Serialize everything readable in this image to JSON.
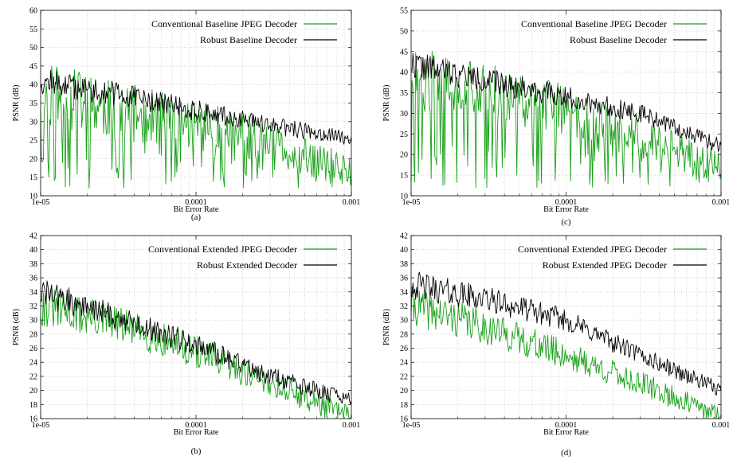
{
  "chart_data": [
    {
      "id": "a",
      "type": "line",
      "caption": "(a)",
      "xlabel": "Bit Error Rate",
      "ylabel": "PSNR (dB)",
      "xscale": "log",
      "xlim": [
        1e-05,
        0.001
      ],
      "ylim": [
        10,
        60
      ],
      "yticks": [
        10,
        15,
        20,
        25,
        30,
        35,
        40,
        45,
        50,
        55,
        60
      ],
      "xticks": [
        "1e-05",
        "0.0001",
        "0.001"
      ],
      "legend_position": "top-right",
      "series": [
        {
          "name": "Conventional Baseline JPEG Decoder",
          "color": "#16a016",
          "trend": [
            [
              1e-05,
              38
            ],
            [
              3e-05,
              33
            ],
            [
              0.0001,
              29
            ],
            [
              0.0003,
              24
            ],
            [
              0.001,
              16
            ]
          ],
          "noise": 8,
          "drop_prob": 0.22,
          "drop_floor": 12,
          "seed": 11
        },
        {
          "name": "Robust Baseline Decoder",
          "color": "#000000",
          "trend": [
            [
              1e-05,
              41
            ],
            [
              3e-05,
              37.5
            ],
            [
              0.0001,
              33
            ],
            [
              0.0003,
              29
            ],
            [
              0.001,
              25.5
            ]
          ],
          "noise": 3.2,
          "drop_prob": 0,
          "drop_floor": 12,
          "seed": 12
        }
      ]
    },
    {
      "id": "c",
      "type": "line",
      "caption": "(c)",
      "xlabel": "Bit Error Rate",
      "ylabel": "PSNR (dB)",
      "xscale": "log",
      "xlim": [
        1e-05,
        0.001
      ],
      "ylim": [
        10,
        55
      ],
      "yticks": [
        10,
        15,
        20,
        25,
        30,
        35,
        40,
        45,
        50,
        55
      ],
      "xticks": [
        "1e-05",
        "0.0001",
        "0.001"
      ],
      "legend_position": "top-right",
      "series": [
        {
          "name": "Conventional Baseline JPEG Decoder",
          "color": "#16a016",
          "trend": [
            [
              1e-05,
              39
            ],
            [
              3e-05,
              35
            ],
            [
              0.0001,
              31
            ],
            [
              0.0003,
              25
            ],
            [
              0.001,
              16
            ]
          ],
          "noise": 7,
          "drop_prob": 0.2,
          "drop_floor": 12,
          "seed": 21
        },
        {
          "name": "Robust Baseline Decoder",
          "color": "#000000",
          "trend": [
            [
              1e-05,
              42
            ],
            [
              3e-05,
              38
            ],
            [
              0.0001,
              34
            ],
            [
              0.0003,
              30
            ],
            [
              0.001,
              22
            ]
          ],
          "noise": 3,
          "drop_prob": 0,
          "drop_floor": 12,
          "seed": 22
        }
      ]
    },
    {
      "id": "b",
      "type": "line",
      "caption": "(b)",
      "xlabel": "Bit Error Rate",
      "ylabel": "PSNR (dB)",
      "xscale": "log",
      "xlim": [
        1e-05,
        0.001
      ],
      "ylim": [
        16,
        42
      ],
      "yticks": [
        16,
        18,
        20,
        22,
        24,
        26,
        28,
        30,
        32,
        34,
        36,
        38,
        40,
        42
      ],
      "xticks": [
        "1e-05",
        "0.0001",
        "0.001"
      ],
      "legend_position": "top-right",
      "series": [
        {
          "name": "Conventional Extended JPEG Decoder",
          "color": "#16a016",
          "trend": [
            [
              1e-05,
              32
            ],
            [
              3e-05,
              29.5
            ],
            [
              0.0001,
              25.5
            ],
            [
              0.0003,
              21
            ],
            [
              0.001,
              16.2
            ]
          ],
          "noise": 2.6,
          "drop_prob": 0,
          "drop_floor": 16,
          "seed": 31
        },
        {
          "name": "Robust Extended Decoder",
          "color": "#000000",
          "trend": [
            [
              1e-05,
              34
            ],
            [
              3e-05,
              30.5
            ],
            [
              0.0001,
              26.5
            ],
            [
              0.0003,
              22
            ],
            [
              0.001,
              18.5
            ]
          ],
          "noise": 1.8,
          "drop_prob": 0,
          "drop_floor": 16,
          "seed": 32
        }
      ]
    },
    {
      "id": "d",
      "type": "line",
      "caption": "(d)",
      "xlabel": "Bit Error Rate",
      "ylabel": "PSNR (dB)",
      "xscale": "log",
      "xlim": [
        1e-05,
        0.001
      ],
      "ylim": [
        16,
        42
      ],
      "yticks": [
        16,
        18,
        20,
        22,
        24,
        26,
        28,
        30,
        32,
        34,
        36,
        38,
        40,
        42
      ],
      "xticks": [
        "1e-05",
        "0.0001",
        "0.001"
      ],
      "legend_position": "top-right",
      "series": [
        {
          "name": "Conventional Extended JPEG Decoder",
          "color": "#16a016",
          "trend": [
            [
              1e-05,
              32
            ],
            [
              3e-05,
              29
            ],
            [
              0.0001,
              25
            ],
            [
              0.0003,
              21
            ],
            [
              0.001,
              16.2
            ]
          ],
          "noise": 2.4,
          "drop_prob": 0,
          "drop_floor": 16,
          "seed": 41
        },
        {
          "name": "Robust Extended JPEG Decoder",
          "color": "#000000",
          "trend": [
            [
              1e-05,
              35
            ],
            [
              3e-05,
              33
            ],
            [
              0.0001,
              30
            ],
            [
              0.0003,
              25
            ],
            [
              0.001,
              20
            ]
          ],
          "noise": 1.8,
          "drop_prob": 0,
          "drop_floor": 16,
          "seed": 42
        }
      ]
    }
  ]
}
